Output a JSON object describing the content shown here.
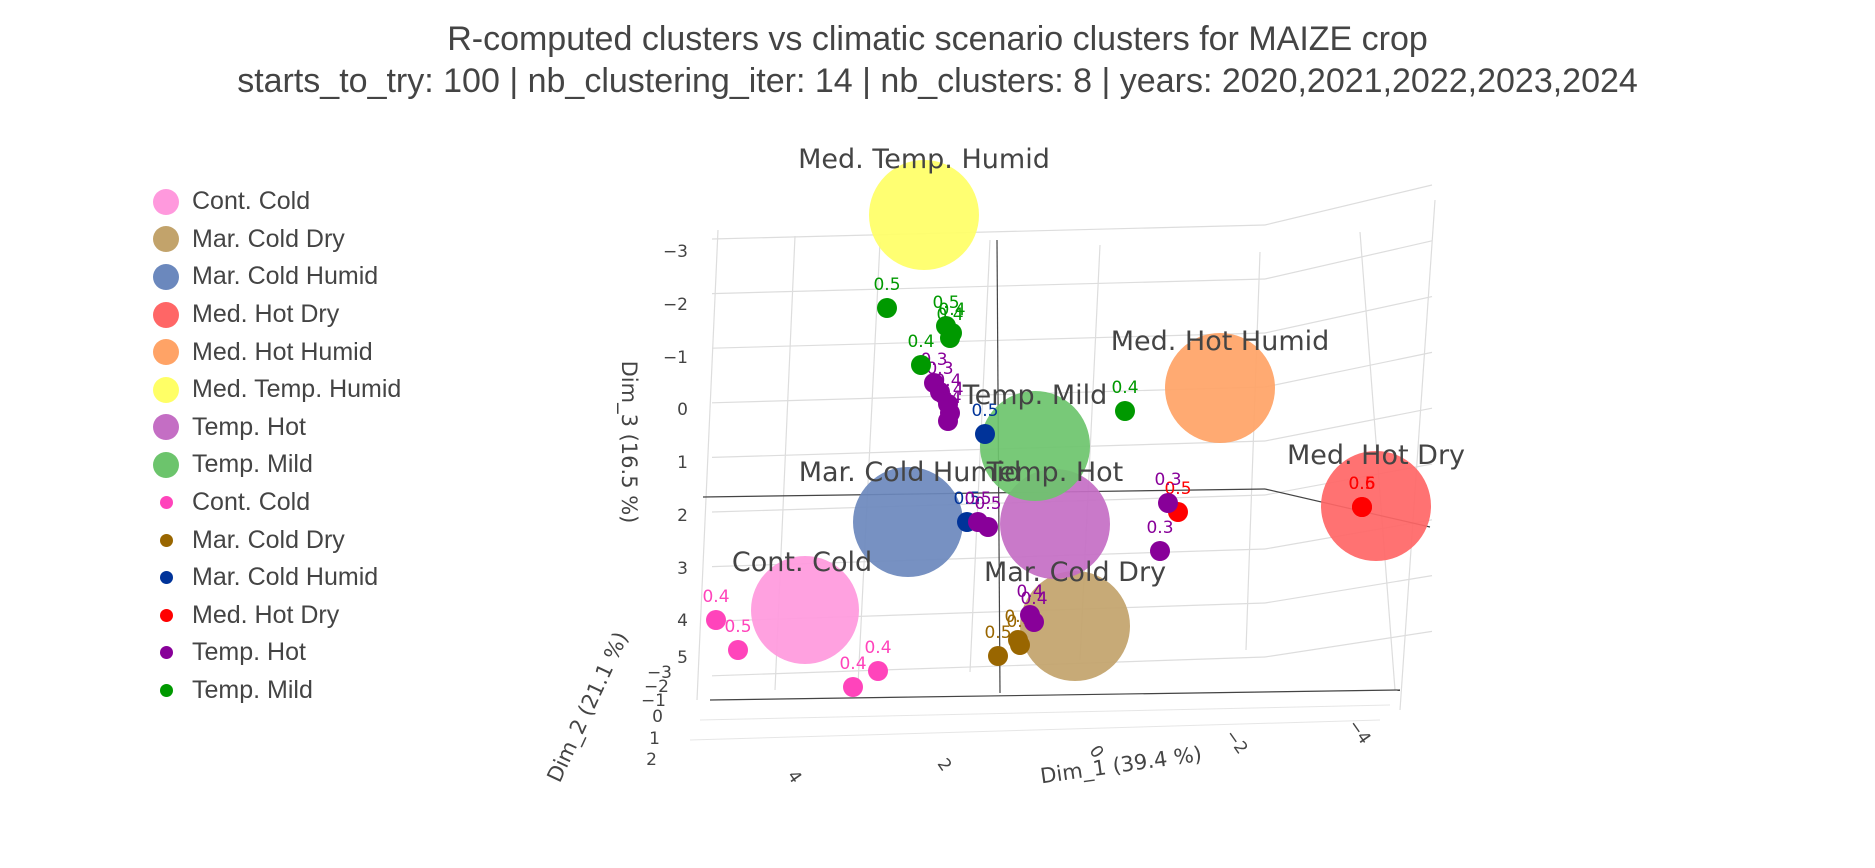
{
  "title": "R-computed clusters vs climatic scenario clusters for MAIZE crop",
  "subtitle": "starts_to_try: 100 | nb_clustering_iter: 14 | nb_clusters: 8 | years: 2020,2021,2022,2023,2024",
  "legend": [
    {
      "label": "Cont. Cold",
      "color": "#ff99dd",
      "marker": "big"
    },
    {
      "label": "Mar. Cold Dry",
      "color": "#c2a36b",
      "marker": "big"
    },
    {
      "label": "Mar. Cold Humid",
      "color": "#6b88bd",
      "marker": "big"
    },
    {
      "label": "Med. Hot Dry",
      "color": "#ff6666",
      "marker": "big"
    },
    {
      "label": "Med. Hot Humid",
      "color": "#ffa366",
      "marker": "big"
    },
    {
      "label": "Med. Temp. Humid",
      "color": "#ffff66",
      "marker": "big"
    },
    {
      "label": "Temp. Hot",
      "color": "#c46ec4",
      "marker": "big"
    },
    {
      "label": "Temp. Mild",
      "color": "#6cc46c",
      "marker": "big"
    },
    {
      "label": "Cont. Cold",
      "color": "#ff44bb",
      "marker": "small"
    },
    {
      "label": "Mar. Cold Dry",
      "color": "#996600",
      "marker": "small"
    },
    {
      "label": "Mar. Cold Humid",
      "color": "#003399",
      "marker": "small"
    },
    {
      "label": "Med. Hot Dry",
      "color": "#ff0000",
      "marker": "small"
    },
    {
      "label": "Temp. Hot",
      "color": "#880099",
      "marker": "small"
    },
    {
      "label": "Temp. Mild",
      "color": "#009900",
      "marker": "small"
    }
  ],
  "chart_data": {
    "type": "scatter",
    "dimensions": "3d",
    "axes": {
      "x": {
        "title": "Dim_1 (39.4 %)",
        "ticks": [
          "4",
          "2",
          "0",
          "−2",
          "−4"
        ],
        "range": [
          5,
          -5
        ]
      },
      "y": {
        "title": "Dim_2 (21.1 %)",
        "ticks": [
          "−3",
          "−2",
          "−1",
          "0",
          "1",
          "2"
        ],
        "range": [
          -3,
          2
        ]
      },
      "z": {
        "title": "Dim_3 (16.5 %)",
        "ticks": [
          "−3",
          "−2",
          "−1",
          "0",
          "1",
          "2",
          "3",
          "4",
          "5"
        ],
        "range": [
          -3,
          5.5
        ]
      }
    },
    "grid": true,
    "legend_position": "left",
    "clusters": [
      {
        "name": "Cont. Cold",
        "color": "#ff99dd",
        "dim_1": 3.6,
        "dim_2": 0,
        "dim_3": -2.1
      },
      {
        "name": "Mar. Cold Dry",
        "color": "#c2a36b",
        "dim_1": -0.5,
        "dim_2": 0,
        "dim_3": -2.3
      },
      {
        "name": "Mar. Cold Humid",
        "color": "#6b88bd",
        "dim_1": 1.8,
        "dim_2": 0,
        "dim_3": -0.4
      },
      {
        "name": "Med. Hot Dry",
        "color": "#ff6666",
        "dim_1": -4.1,
        "dim_2": 0,
        "dim_3": 0.2
      },
      {
        "name": "Med. Hot Humid",
        "color": "#ffa366",
        "dim_1": -3.2,
        "dim_2": 0,
        "dim_3": 2.0
      },
      {
        "name": "Med. Temp. Humid",
        "color": "#ffff66",
        "dim_1": 1.9,
        "dim_2": 0,
        "dim_3": 5.2
      },
      {
        "name": "Temp. Hot",
        "color": "#c46ec4",
        "dim_1": -0.1,
        "dim_2": 0,
        "dim_3": -0.3
      },
      {
        "name": "Temp. Mild",
        "color": "#6cc46c",
        "dim_1": 0.1,
        "dim_2": 0,
        "dim_3": 1.0
      }
    ],
    "series": [
      {
        "name": "Cont. Cold",
        "color": "#ff44bb",
        "points": [
          {
            "dim_1": 4.9,
            "dim_2": 0,
            "dim_3": -2.1,
            "label": "0.4"
          },
          {
            "dim_1": 4.6,
            "dim_2": 0,
            "dim_3": -2.6,
            "label": "0.5"
          },
          {
            "dim_1": 3.2,
            "dim_2": 0,
            "dim_3": -3.3,
            "label": "0.4"
          },
          {
            "dim_1": 3.0,
            "dim_2": 0,
            "dim_3": -3.0,
            "label": "0.4"
          }
        ]
      },
      {
        "name": "Mar. Cold Dry",
        "color": "#996600",
        "points": [
          {
            "dim_1": 1.1,
            "dim_2": 0,
            "dim_3": -2.8,
            "label": "0.5"
          },
          {
            "dim_1": 0.8,
            "dim_2": 0,
            "dim_3": -2.6,
            "label": "0.4"
          },
          {
            "dim_1": 0.75,
            "dim_2": 0,
            "dim_3": -2.55,
            "label": "0.4"
          }
        ]
      },
      {
        "name": "Mar. Cold Humid",
        "color": "#003399",
        "points": [
          {
            "dim_1": 1.0,
            "dim_2": 0,
            "dim_3": 1.3,
            "label": "0.5"
          },
          {
            "dim_1": 0.9,
            "dim_2": 0,
            "dim_3": -0.3,
            "label": "0.5"
          }
        ]
      },
      {
        "name": "Med. Hot Dry",
        "color": "#ff0000",
        "points": [
          {
            "dim_1": -2.6,
            "dim_2": 0,
            "dim_3": -0.1,
            "label": "0.5"
          },
          {
            "dim_1": -4.8,
            "dim_2": 0,
            "dim_3": -0.05,
            "label": "0.6"
          },
          {
            "dim_1": -4.8,
            "dim_2": 0,
            "dim_3": -0.05,
            "label": "0.5"
          }
        ]
      },
      {
        "name": "Temp. Hot",
        "color": "#880099",
        "points": [
          {
            "dim_1": 1.6,
            "dim_2": 0,
            "dim_3": 2.2,
            "label": "0.3"
          },
          {
            "dim_1": 1.5,
            "dim_2": 0,
            "dim_3": 2.0,
            "label": "0.3"
          },
          {
            "dim_1": 1.45,
            "dim_2": 0,
            "dim_3": 1.8,
            "label": "0.4"
          },
          {
            "dim_1": 1.4,
            "dim_2": 0,
            "dim_3": 1.6,
            "label": "0.4"
          },
          {
            "dim_1": 1.35,
            "dim_2": 0,
            "dim_3": 1.5,
            "label": "0.4"
          },
          {
            "dim_1": 0.9,
            "dim_2": 0,
            "dim_3": -0.35,
            "label": "0.5"
          },
          {
            "dim_1": 0.6,
            "dim_2": 0,
            "dim_3": -0.4,
            "label": "0.5"
          },
          {
            "dim_1": -2.6,
            "dim_2": 0,
            "dim_3": 0.1,
            "label": "0.3"
          },
          {
            "dim_1": -2.4,
            "dim_2": 0,
            "dim_3": -0.8,
            "label": "0.3"
          },
          {
            "dim_1": 0.3,
            "dim_2": 0,
            "dim_3": -2.1,
            "label": "0.4"
          },
          {
            "dim_1": 0.35,
            "dim_2": 0,
            "dim_3": -2.3,
            "label": "0.4"
          }
        ]
      },
      {
        "name": "Temp. Mild",
        "color": "#009900",
        "points": [
          {
            "dim_1": 2.0,
            "dim_2": 0,
            "dim_3": 3.6,
            "label": "0.5"
          },
          {
            "dim_1": 1.4,
            "dim_2": 0,
            "dim_3": 3.2,
            "label": "0.5"
          },
          {
            "dim_1": 1.35,
            "dim_2": 0,
            "dim_3": 3.1,
            "label": "0.4"
          },
          {
            "dim_1": 1.3,
            "dim_2": 0,
            "dim_3": 3.0,
            "label": "0.4"
          },
          {
            "dim_1": 1.7,
            "dim_2": 0,
            "dim_3": 2.5,
            "label": "0.4"
          },
          {
            "dim_1": -1.4,
            "dim_2": 0,
            "dim_3": 1.7,
            "label": "0.4"
          }
        ]
      }
    ]
  }
}
